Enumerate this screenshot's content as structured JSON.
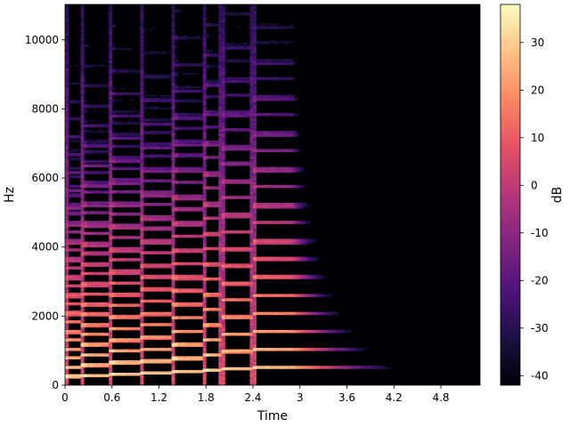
{
  "chart_data": {
    "type": "heatmap",
    "subtype": "spectrogram",
    "xlabel": "Time",
    "ylabel": "Hz",
    "xlim": [
      0,
      5.3
    ],
    "ylim": [
      0,
      11025
    ],
    "x_ticks": [
      "0",
      "0.6",
      "1.2",
      "1.8",
      "2.4",
      "3",
      "3.6",
      "4.2",
      "4.8"
    ],
    "x_tick_values": [
      0,
      0.6,
      1.2,
      1.8,
      2.4,
      3.0,
      3.6,
      4.2,
      4.8
    ],
    "y_ticks": [
      "0",
      "2000",
      "4000",
      "6000",
      "8000",
      "10000"
    ],
    "y_tick_values": [
      0,
      2000,
      4000,
      6000,
      8000,
      10000
    ],
    "colorbar": {
      "label": "dB",
      "range": [
        -42,
        38
      ],
      "ticks": [
        "30",
        "20",
        "10",
        "0",
        "-10",
        "-20",
        "-30",
        "-40"
      ],
      "tick_values": [
        30,
        20,
        10,
        0,
        -10,
        -20,
        -30,
        -40
      ],
      "colormap": "magma"
    },
    "notes_onsets": [
      0.0,
      0.22,
      0.58,
      0.97,
      1.38,
      1.78,
      2.0,
      2.4
    ],
    "notes_f0": [
      262,
      294,
      330,
      349,
      392,
      440,
      494,
      523
    ],
    "decay_end": 4.3,
    "grid": false
  },
  "colors": {
    "magma_stops": [
      "#000004",
      "#1c1044",
      "#4f127b",
      "#812581",
      "#b5367a",
      "#e55064",
      "#fb8761",
      "#fec287",
      "#fcfdbf"
    ]
  }
}
